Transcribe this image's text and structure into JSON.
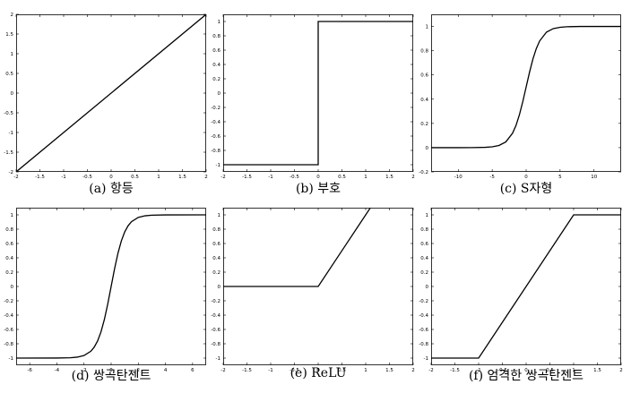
{
  "chart_data": [
    {
      "id": "a",
      "type": "line",
      "caption": "(a) 항등",
      "xlim": [
        -2,
        2
      ],
      "ylim": [
        -2,
        2
      ],
      "xticks": [
        -2,
        -1.5,
        -1,
        -0.5,
        0,
        0.5,
        1,
        1.5,
        2
      ],
      "xticklabels": [
        "-2",
        "-1.5",
        "-1",
        "-0.5",
        "0",
        "0.5",
        "1",
        "1.5",
        "2"
      ],
      "yticks": [
        -2,
        -1.5,
        -1,
        -0.5,
        0,
        0.5,
        1,
        1.5,
        2
      ],
      "yticklabels": [
        "-2",
        "-1.5",
        "-1",
        "-0.5",
        "0",
        "0.5",
        "1",
        "1.5",
        "2"
      ],
      "series": [
        {
          "x": [
            -2,
            2
          ],
          "y": [
            -2,
            2
          ]
        }
      ]
    },
    {
      "id": "b",
      "type": "line",
      "caption": "(b) 부호",
      "xlim": [
        -2,
        2
      ],
      "ylim": [
        -1.1,
        1.1
      ],
      "xticks": [
        -2,
        -1.5,
        -1,
        -0.5,
        0,
        0.5,
        1,
        1.5,
        2
      ],
      "xticklabels": [
        "-2",
        "-1.5",
        "-1",
        "-0.5",
        "0",
        "0.5",
        "1",
        "1.5",
        "2"
      ],
      "yticks": [
        -1,
        -0.8,
        -0.6,
        -0.4,
        -0.2,
        0,
        0.2,
        0.4,
        0.6,
        0.8,
        1
      ],
      "yticklabels": [
        "-1",
        "-0.8",
        "-0.6",
        "-0.4",
        "-0.2",
        "0",
        "0.2",
        "0.4",
        "0.6",
        "0.8",
        "1"
      ],
      "series": [
        {
          "x": [
            -2,
            0,
            0,
            2
          ],
          "y": [
            -1,
            -1,
            1,
            1
          ]
        }
      ]
    },
    {
      "id": "c",
      "type": "line",
      "caption": "(c) S자형",
      "xlim": [
        -14,
        14
      ],
      "ylim": [
        -0.2,
        1.1
      ],
      "xticks": [
        -10,
        -5,
        0,
        5,
        10
      ],
      "xticklabels": [
        "-10",
        "-5",
        "0",
        "5",
        "10"
      ],
      "yticks": [
        -0.2,
        0,
        0.2,
        0.4,
        0.6,
        0.8,
        1
      ],
      "yticklabels": [
        "-0.2",
        "0",
        "0.2",
        "0.4",
        "0.6",
        "0.8",
        "1"
      ],
      "series": [
        {
          "x": [
            -14,
            -10,
            -8,
            -6,
            -5,
            -4,
            -3,
            -2,
            -1.5,
            -1,
            -0.5,
            0,
            0.5,
            1,
            1.5,
            2,
            3,
            4,
            5,
            6,
            8,
            10,
            14
          ],
          "y": [
            0.0,
            0.0,
            0.0003,
            0.0025,
            0.0067,
            0.018,
            0.047,
            0.119,
            0.182,
            0.269,
            0.378,
            0.5,
            0.622,
            0.731,
            0.818,
            0.881,
            0.953,
            0.982,
            0.993,
            0.9975,
            0.9997,
            1.0,
            1.0
          ]
        }
      ]
    },
    {
      "id": "d",
      "type": "line",
      "caption": "(d) 쌍곡탄젠트",
      "xlim": [
        -7,
        7
      ],
      "ylim": [
        -1.1,
        1.1
      ],
      "xticks": [
        -6,
        -4,
        -2,
        0,
        2,
        4,
        6
      ],
      "xticklabels": [
        "-6",
        "-4",
        "-2",
        "0",
        "2",
        "4",
        "6"
      ],
      "yticks": [
        -1,
        -0.8,
        -0.6,
        -0.4,
        -0.2,
        0,
        0.2,
        0.4,
        0.6,
        0.8,
        1
      ],
      "yticklabels": [
        "-1",
        "-0.8",
        "-0.6",
        "-0.4",
        "-0.2",
        "0",
        "0.2",
        "0.4",
        "0.6",
        "0.8",
        "1"
      ],
      "series": [
        {
          "x": [
            -7,
            -4,
            -3,
            -2.5,
            -2,
            -1.5,
            -1.25,
            -1,
            -0.75,
            -0.5,
            -0.25,
            0,
            0.25,
            0.5,
            0.75,
            1,
            1.25,
            1.5,
            2,
            2.5,
            3,
            4,
            7
          ],
          "y": [
            -1.0,
            -0.999,
            -0.995,
            -0.987,
            -0.964,
            -0.905,
            -0.848,
            -0.762,
            -0.635,
            -0.462,
            -0.245,
            0,
            0.245,
            0.462,
            0.635,
            0.762,
            0.848,
            0.905,
            0.964,
            0.987,
            0.995,
            0.999,
            1.0
          ]
        }
      ]
    },
    {
      "id": "e",
      "type": "line",
      "caption": "(e) ReLU",
      "xlim": [
        -2,
        2
      ],
      "ylim": [
        -1.1,
        1.1
      ],
      "xticks": [
        -2,
        -1.5,
        -1,
        -0.5,
        0,
        0.5,
        1,
        1.5,
        2
      ],
      "xticklabels": [
        "-2",
        "-1.5",
        "-1",
        "-0.5",
        "0",
        "0.5",
        "1",
        "1.5",
        "2"
      ],
      "yticks": [
        -1,
        -0.8,
        -0.6,
        -0.4,
        -0.2,
        0,
        0.2,
        0.4,
        0.6,
        0.8,
        1
      ],
      "yticklabels": [
        "-1",
        "-0.8",
        "-0.6",
        "-0.4",
        "-0.2",
        "0",
        "0.2",
        "0.4",
        "0.6",
        "0.8",
        "1"
      ],
      "series": [
        {
          "x": [
            -2,
            0,
            1.1
          ],
          "y": [
            0,
            0,
            1.1
          ]
        }
      ]
    },
    {
      "id": "f",
      "type": "line",
      "caption": "(f) 엄격한 쌍곡탄젠트",
      "xlim": [
        -2,
        2
      ],
      "ylim": [
        -1.1,
        1.1
      ],
      "xticks": [
        -2,
        -1.5,
        -1,
        -0.5,
        0,
        0.5,
        1,
        1.5,
        2
      ],
      "xticklabels": [
        "-2",
        "-1.5",
        "-1",
        "-0.5",
        "0",
        "0.5",
        "1",
        "1.5",
        "2"
      ],
      "yticks": [
        -1,
        -0.8,
        -0.6,
        -0.4,
        -0.2,
        0,
        0.2,
        0.4,
        0.6,
        0.8,
        1
      ],
      "yticklabels": [
        "-1",
        "-0.8",
        "-0.6",
        "-0.4",
        "-0.2",
        "0",
        "0.2",
        "0.4",
        "0.6",
        "0.8",
        "1"
      ],
      "series": [
        {
          "x": [
            -2,
            -1,
            1,
            2
          ],
          "y": [
            -1,
            -1,
            1,
            1
          ]
        }
      ]
    }
  ]
}
